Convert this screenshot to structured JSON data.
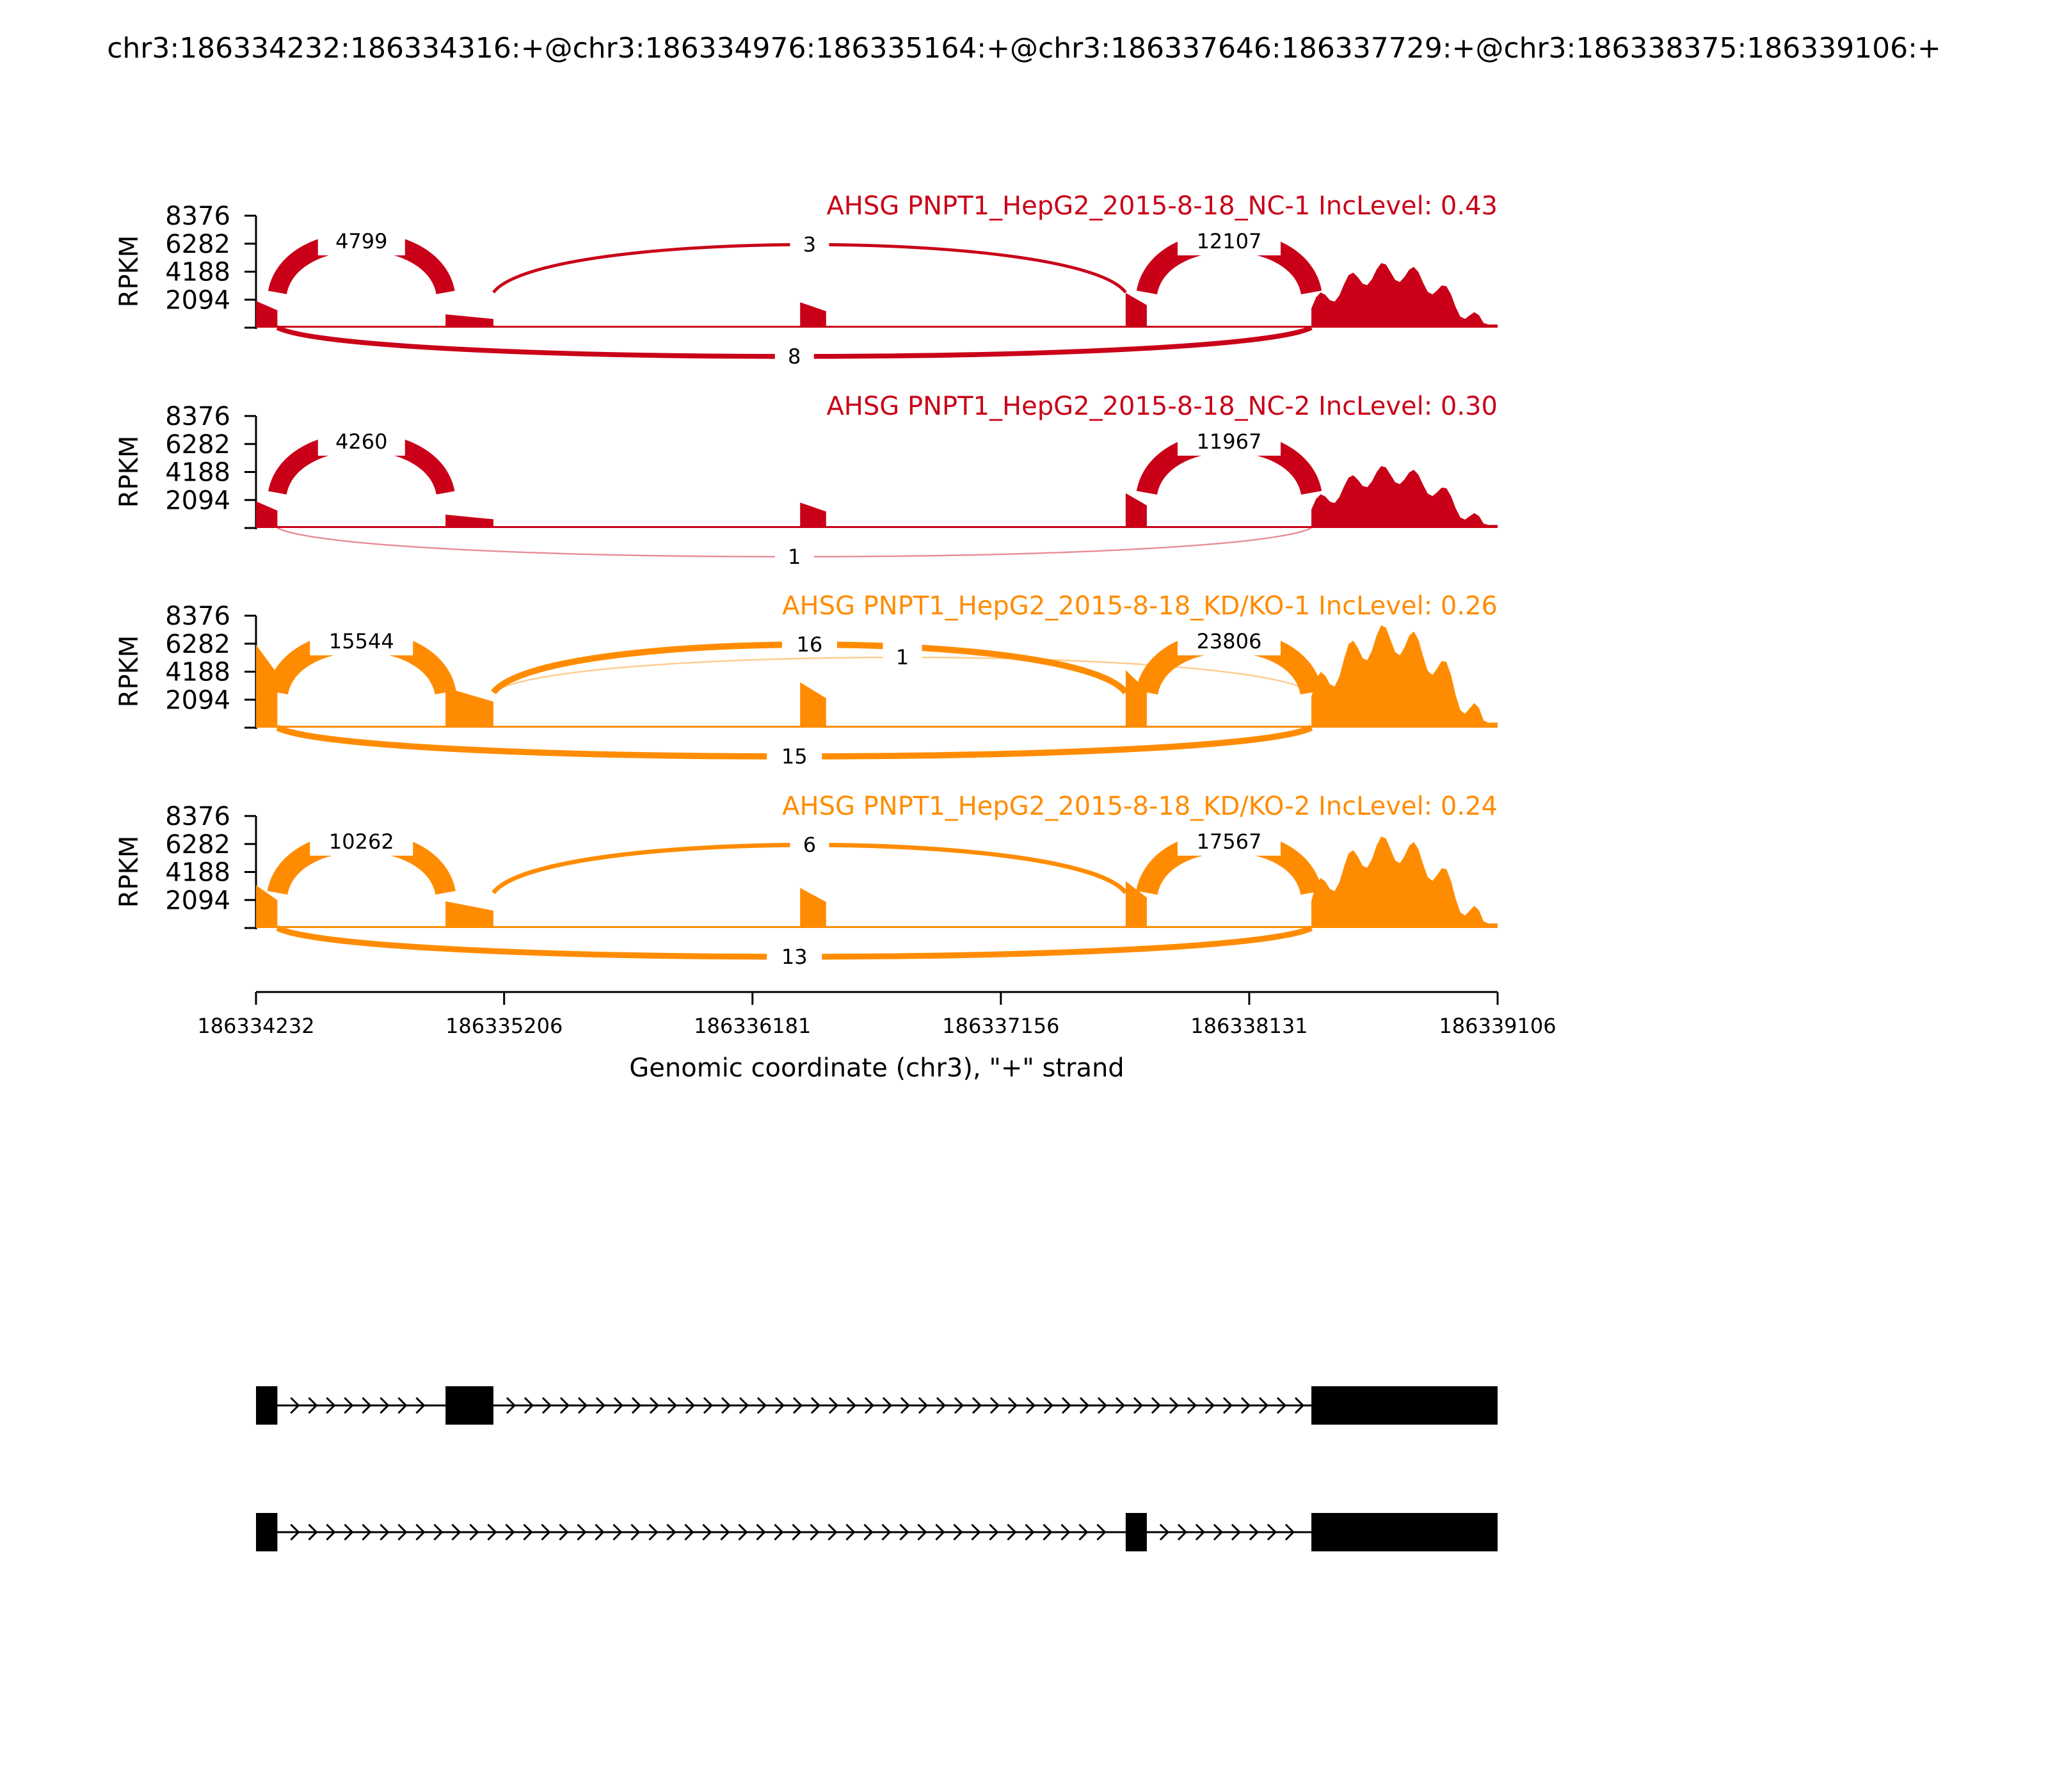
{
  "title": "chr3:186334232:186334316:+@chr3:186334976:186335164:+@chr3:186337646:186337729:+@chr3:186338375:186339106:+",
  "chart_data": {
    "type": "area",
    "xlabel": "Genomic coordinate (chr3), \"+\" strand",
    "ylabel": "RPKM",
    "xlim": [
      186334232,
      186339106
    ],
    "x_ticks": [
      "186334232",
      "186335206",
      "186336181",
      "186337156",
      "186338131",
      "186339106"
    ],
    "ylim": [
      0,
      8376
    ],
    "y_ticks": [
      "2094",
      "4188",
      "6282",
      "8376"
    ],
    "grid": false,
    "exons": [
      [
        186334232,
        186334316
      ],
      [
        186334976,
        186335164
      ],
      [
        186336368,
        186336470
      ],
      [
        186337646,
        186337729
      ],
      [
        186338375,
        186339106
      ]
    ],
    "series": [
      {
        "name": "AHSG PNPT1_HepG2_2015-8-18_NC-1 IncLevel: 0.43",
        "color": "#c90018",
        "profile": [
          {
            "from": 186334232,
            "to": 186334316,
            "level": 2000
          },
          {
            "from": 186334976,
            "to": 186335164,
            "level": 1000
          },
          {
            "from": 186336368,
            "to": 186336470,
            "level": 1900
          },
          {
            "from": 186337646,
            "to": 186337729,
            "level": 2600
          },
          {
            "from": 186338375,
            "to": 186339106,
            "level": 4800
          }
        ],
        "junctions": [
          {
            "start": 186334316,
            "end": 186334976,
            "count": 4799,
            "label": "4799",
            "side": "above"
          },
          {
            "start": 186335164,
            "end": 186337646,
            "count": 3,
            "label": "3",
            "side": "above"
          },
          {
            "start": 186337729,
            "end": 186338375,
            "count": 12107,
            "label": "12107",
            "side": "above"
          },
          {
            "start": 186334316,
            "end": 186338375,
            "count": 8,
            "label": "8",
            "side": "below"
          }
        ]
      },
      {
        "name": "AHSG PNPT1_HepG2_2015-8-18_NC-2 IncLevel: 0.30",
        "color": "#c90018",
        "profile": [
          {
            "from": 186334232,
            "to": 186334316,
            "level": 2000
          },
          {
            "from": 186334976,
            "to": 186335164,
            "level": 1000
          },
          {
            "from": 186336368,
            "to": 186336470,
            "level": 1900
          },
          {
            "from": 186337646,
            "to": 186337729,
            "level": 2600
          },
          {
            "from": 186338375,
            "to": 186339106,
            "level": 4600
          }
        ],
        "junctions": [
          {
            "start": 186334316,
            "end": 186334976,
            "count": 4260,
            "label": "4260",
            "side": "above"
          },
          {
            "start": 186337729,
            "end": 186338375,
            "count": 11967,
            "label": "11967",
            "side": "above"
          },
          {
            "start": 186334316,
            "end": 186338375,
            "count": 1,
            "label": "1",
            "side": "below"
          }
        ]
      },
      {
        "name": "AHSG PNPT1_HepG2_2015-8-18_KD/KO-1 IncLevel: 0.26",
        "color": "#ff8c00",
        "profile": [
          {
            "from": 186334232,
            "to": 186334316,
            "level": 6200
          },
          {
            "from": 186334976,
            "to": 186335164,
            "level": 3000
          },
          {
            "from": 186336368,
            "to": 186336470,
            "level": 3400
          },
          {
            "from": 186337646,
            "to": 186337729,
            "level": 4300
          },
          {
            "from": 186338375,
            "to": 186339106,
            "level": 7600
          }
        ],
        "junctions": [
          {
            "start": 186334316,
            "end": 186334976,
            "count": 15544,
            "label": "15544",
            "side": "above"
          },
          {
            "start": 186335164,
            "end": 186337646,
            "count": 16,
            "label": "16",
            "side": "above"
          },
          {
            "start": 186335164,
            "end": 186338375,
            "count": 1,
            "label": "1",
            "side": "above"
          },
          {
            "start": 186337729,
            "end": 186338375,
            "count": 23806,
            "label": "23806",
            "side": "above"
          },
          {
            "start": 186334316,
            "end": 186338375,
            "count": 15,
            "label": "15",
            "side": "below"
          }
        ]
      },
      {
        "name": "AHSG PNPT1_HepG2_2015-8-18_KD/KO-2 IncLevel: 0.24",
        "color": "#ff8c00",
        "profile": [
          {
            "from": 186334232,
            "to": 186334316,
            "level": 3200
          },
          {
            "from": 186334976,
            "to": 186335164,
            "level": 2000
          },
          {
            "from": 186336368,
            "to": 186336470,
            "level": 3000
          },
          {
            "from": 186337646,
            "to": 186337729,
            "level": 3500
          },
          {
            "from": 186338375,
            "to": 186339106,
            "level": 6800
          }
        ],
        "junctions": [
          {
            "start": 186334316,
            "end": 186334976,
            "count": 10262,
            "label": "10262",
            "side": "above"
          },
          {
            "start": 186335164,
            "end": 186337646,
            "count": 6,
            "label": "6",
            "side": "above"
          },
          {
            "start": 186337729,
            "end": 186338375,
            "count": 17567,
            "label": "17567",
            "side": "above"
          },
          {
            "start": 186334316,
            "end": 186338375,
            "count": 13,
            "label": "13",
            "side": "below"
          }
        ]
      }
    ],
    "isoforms": [
      {
        "exons": [
          [
            186334232,
            186334316
          ],
          [
            186334976,
            186335164
          ],
          [
            186338375,
            186339106
          ]
        ]
      },
      {
        "exons": [
          [
            186334232,
            186334316
          ],
          [
            186337646,
            186337729
          ],
          [
            186338375,
            186339106
          ]
        ]
      }
    ]
  }
}
